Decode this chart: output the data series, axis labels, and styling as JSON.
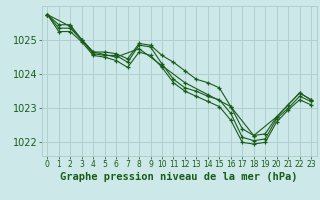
{
  "background_color": "#cce8e8",
  "grid_color": "#b0d0d0",
  "line_color": "#1a5c1a",
  "xlabel": "Graphe pression niveau de la mer (hPa)",
  "xlabel_color": "#1a5c1a",
  "xlabel_fontsize": 7.5,
  "ytick_fontsize": 7,
  "xtick_fontsize": 5.5,
  "ylim": [
    1021.6,
    1026.0
  ],
  "xlim": [
    -0.5,
    23.5
  ],
  "yticks": [
    1022,
    1023,
    1024,
    1025
  ],
  "xticks": [
    0,
    1,
    2,
    3,
    4,
    5,
    6,
    7,
    8,
    9,
    10,
    11,
    12,
    13,
    14,
    15,
    16,
    17,
    18,
    19,
    20,
    21,
    22,
    23
  ],
  "lines": [
    {
      "x": [
        0,
        1,
        2,
        3,
        4,
        5,
        6,
        7,
        8,
        9,
        10,
        11,
        12,
        13,
        14,
        15,
        16,
        17,
        18,
        19,
        20,
        21,
        22,
        23
      ],
      "y": [
        1025.75,
        1025.45,
        1025.45,
        1025.0,
        1024.65,
        1024.65,
        1024.6,
        1024.45,
        1024.9,
        1024.85,
        1024.55,
        1024.35,
        1024.1,
        1023.85,
        1023.75,
        1023.6,
        1023.05,
        1022.4,
        1022.2,
        1022.25,
        1022.75,
        1023.1,
        1023.45,
        1023.25
      ]
    },
    {
      "x": [
        0,
        1,
        2,
        3,
        4,
        5,
        6,
        7,
        8,
        9,
        10,
        11,
        12,
        13,
        14,
        15,
        16,
        17,
        18,
        19,
        20,
        21,
        22,
        23
      ],
      "y": [
        1025.75,
        1025.35,
        1025.35,
        1025.0,
        1024.6,
        1024.55,
        1024.55,
        1024.35,
        1024.85,
        1024.8,
        1024.3,
        1023.85,
        1023.6,
        1023.5,
        1023.35,
        1023.25,
        1022.85,
        1022.15,
        1022.05,
        1022.1,
        1022.7,
        1023.0,
        1023.35,
        1023.2
      ]
    },
    {
      "x": [
        0,
        1,
        2,
        3,
        4,
        5,
        6,
        7,
        8,
        9,
        10,
        11,
        12,
        13,
        14,
        15,
        16,
        17,
        18,
        19,
        20,
        21,
        22,
        23
      ],
      "y": [
        1025.75,
        1025.25,
        1025.25,
        1024.95,
        1024.55,
        1024.5,
        1024.4,
        1024.2,
        1024.65,
        1024.55,
        1024.2,
        1023.75,
        1023.5,
        1023.35,
        1023.2,
        1023.05,
        1022.65,
        1022.0,
        1021.95,
        1022.0,
        1022.6,
        1022.95,
        1023.25,
        1023.1
      ]
    },
    {
      "x": [
        0,
        2,
        4,
        6,
        8,
        10,
        12,
        14,
        16,
        18,
        20,
        22,
        23
      ],
      "y": [
        1025.75,
        1025.4,
        1024.65,
        1024.5,
        1024.75,
        1024.25,
        1023.75,
        1023.4,
        1023.05,
        1022.2,
        1022.75,
        1023.45,
        1023.25
      ]
    }
  ]
}
